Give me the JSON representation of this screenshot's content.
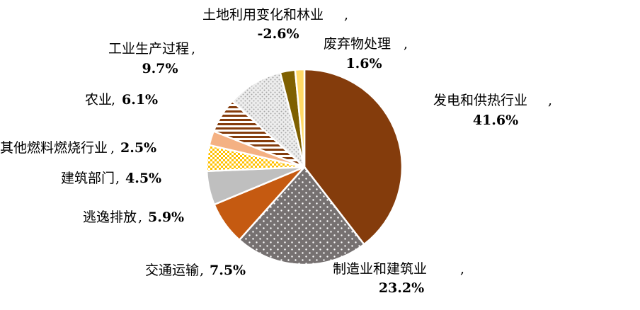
{
  "chart_data": {
    "type": "pie",
    "slices": [
      {
        "name": "发电和供热行业",
        "value": 41.6,
        "display": "41.6%",
        "color": "#843c0c",
        "pattern": "solid"
      },
      {
        "name": "制造业和建筑业",
        "value": 23.2,
        "display": "23.2%",
        "color": "#767171",
        "pattern": "dots"
      },
      {
        "name": "交通运输",
        "value": 7.5,
        "display": "7.5%",
        "color": "#c55a11",
        "pattern": "solid"
      },
      {
        "name": "逃逸排放",
        "value": 5.9,
        "display": "5.9%",
        "color": "#bfbfbf",
        "pattern": "solid"
      },
      {
        "name": "建筑部门",
        "value": 4.5,
        "display": "4.5%",
        "color": "#ffc000",
        "pattern": "checker"
      },
      {
        "name": "其他燃料燃烧行业",
        "value": 2.5,
        "display": "2.5%",
        "color": "#f4b183",
        "pattern": "solid"
      },
      {
        "name": "农业",
        "value": 6.1,
        "display": "6.1%",
        "color": "#843c0c",
        "pattern": "stripes"
      },
      {
        "name": "工业生产过程",
        "value": 9.7,
        "display": "9.7%",
        "color": "#d9d9d9",
        "pattern": "dots-light"
      },
      {
        "name": "土地利用变化和林业",
        "value": 2.6,
        "display": "-2.6%",
        "color": "#7f6000",
        "pattern": "solid"
      },
      {
        "name": "废弃物处理",
        "value": 1.6,
        "display": "1.6%",
        "color": "#ffd966",
        "pattern": "solid"
      }
    ],
    "legend": "none"
  }
}
